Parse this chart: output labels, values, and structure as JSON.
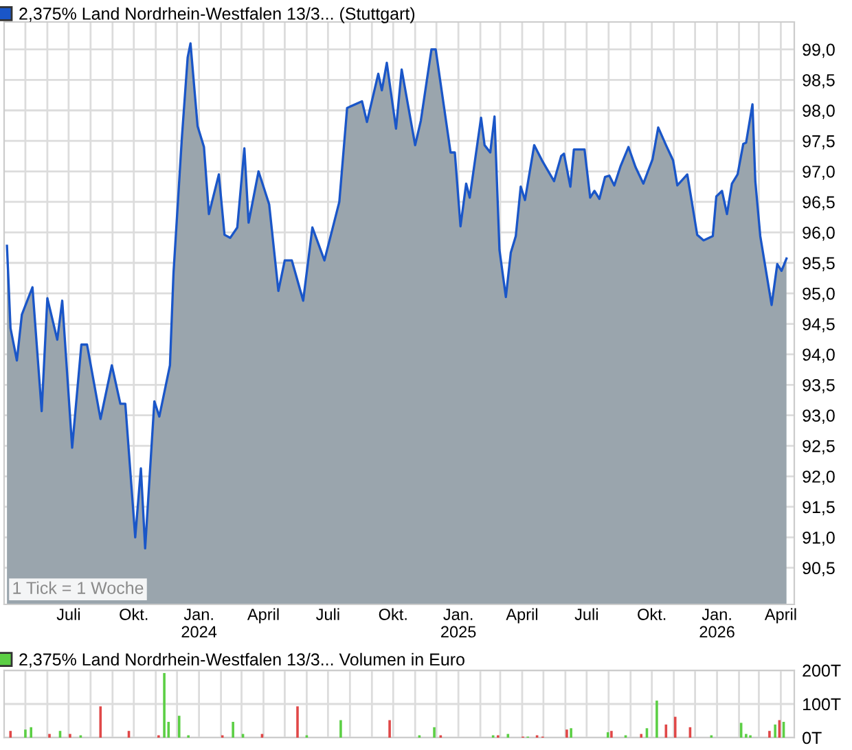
{
  "chart_data": [
    {
      "type": "area",
      "legend": "top left",
      "grid": true,
      "annotations": [
        "1 Tick = 1 Woche"
      ],
      "xlim": [
        "2023-04-01",
        "2026-04-20"
      ],
      "xticks": [
        {
          "value": "2023-05-01",
          "label": null
        },
        {
          "value": "2023-06-01",
          "label": null
        },
        {
          "value": "2023-07-01",
          "label": "Juli"
        },
        {
          "value": "2023-08-01",
          "label": null
        },
        {
          "value": "2023-09-01",
          "label": null
        },
        {
          "value": "2023-10-01",
          "label": "Okt."
        },
        {
          "value": "2023-11-01",
          "label": null
        },
        {
          "value": "2023-12-01",
          "label": null
        },
        {
          "value": "2024-01-01",
          "label": "Jan.\n2024"
        },
        {
          "value": "2024-02-01",
          "label": null
        },
        {
          "value": "2024-03-01",
          "label": null
        },
        {
          "value": "2024-04-01",
          "label": "April"
        },
        {
          "value": "2024-05-01",
          "label": null
        },
        {
          "value": "2024-06-01",
          "label": null
        },
        {
          "value": "2024-07-01",
          "label": "Juli"
        },
        {
          "value": "2024-08-01",
          "label": null
        },
        {
          "value": "2024-09-01",
          "label": null
        },
        {
          "value": "2024-10-01",
          "label": "Okt."
        },
        {
          "value": "2024-11-01",
          "label": null
        },
        {
          "value": "2024-12-01",
          "label": null
        },
        {
          "value": "2025-01-01",
          "label": "Jan.\n2025"
        },
        {
          "value": "2025-02-01",
          "label": null
        },
        {
          "value": "2025-03-01",
          "label": null
        },
        {
          "value": "2025-04-01",
          "label": "April"
        },
        {
          "value": "2025-05-01",
          "label": null
        },
        {
          "value": "2025-06-01",
          "label": null
        },
        {
          "value": "2025-07-01",
          "label": "Juli"
        },
        {
          "value": "2025-08-01",
          "label": null
        },
        {
          "value": "2025-09-01",
          "label": null
        },
        {
          "value": "2025-10-01",
          "label": "Okt."
        },
        {
          "value": "2025-11-01",
          "label": null
        },
        {
          "value": "2025-12-01",
          "label": null
        },
        {
          "value": "2026-01-01",
          "label": "Jan.\n2026"
        },
        {
          "value": "2026-02-01",
          "label": null
        },
        {
          "value": "2026-03-01",
          "label": null
        },
        {
          "value": "2026-04-01",
          "label": "April"
        }
      ],
      "ylim": [
        89.9,
        99.45
      ],
      "yticks": [
        {
          "value": 90.5,
          "label": "90,5"
        },
        {
          "value": 91.0,
          "label": "91,0"
        },
        {
          "value": 91.5,
          "label": "91,5"
        },
        {
          "value": 92.0,
          "label": "92,0"
        },
        {
          "value": 92.5,
          "label": "92,5"
        },
        {
          "value": 93.0,
          "label": "93,0"
        },
        {
          "value": 93.5,
          "label": "93,5"
        },
        {
          "value": 94.0,
          "label": "94,0"
        },
        {
          "value": 94.5,
          "label": "94,5"
        },
        {
          "value": 95.0,
          "label": "95,0"
        },
        {
          "value": 95.5,
          "label": "95,5"
        },
        {
          "value": 96.0,
          "label": "96,0"
        },
        {
          "value": 96.5,
          "label": "96,5"
        },
        {
          "value": 97.0,
          "label": "97,0"
        },
        {
          "value": 97.5,
          "label": "97,5"
        },
        {
          "value": 98.0,
          "label": "98,0"
        },
        {
          "value": 98.5,
          "label": "98,5"
        },
        {
          "value": 99.0,
          "label": "99,0"
        }
      ],
      "series": [
        {
          "name": "2,375% Land Nordrhein-Westfalen 13/3... (Stuttgart)",
          "color": "#1a56c8",
          "x": [
            "2023-04-05",
            "2023-04-10",
            "2023-04-19",
            "2023-04-26",
            "2023-05-11",
            "2023-05-24",
            "2023-06-01",
            "2023-06-15",
            "2023-06-22",
            "2023-07-06",
            "2023-07-19",
            "2023-07-27",
            "2023-08-15",
            "2023-08-31",
            "2023-09-12",
            "2023-09-19",
            "2023-10-03",
            "2023-10-11",
            "2023-10-17",
            "2023-10-30",
            "2023-11-06",
            "2023-11-21",
            "2023-11-26",
            "2023-12-08",
            "2023-12-16",
            "2023-12-20",
            "2023-12-30",
            "2024-01-08",
            "2024-01-15",
            "2024-01-29",
            "2024-02-06",
            "2024-02-14",
            "2024-02-24",
            "2024-03-05",
            "2024-03-11",
            "2024-03-25",
            "2024-04-09",
            "2024-04-22",
            "2024-05-01",
            "2024-05-11",
            "2024-05-27",
            "2024-06-09",
            "2024-06-26",
            "2024-07-17",
            "2024-07-28",
            "2024-08-18",
            "2024-08-25",
            "2024-09-10",
            "2024-09-15",
            "2024-09-22",
            "2024-10-05",
            "2024-10-13",
            "2024-11-01",
            "2024-11-09",
            "2024-11-24",
            "2024-11-30",
            "2024-12-21",
            "2024-12-27",
            "2025-01-04",
            "2025-01-12",
            "2025-01-17",
            "2025-02-02",
            "2025-02-07",
            "2025-02-15",
            "2025-02-21",
            "2025-02-28",
            "2025-03-09",
            "2025-03-16",
            "2025-03-23",
            "2025-03-30",
            "2025-04-05",
            "2025-04-18",
            "2025-04-29",
            "2025-05-16",
            "2025-05-26",
            "2025-05-30",
            "2025-06-08",
            "2025-06-13",
            "2025-06-28",
            "2025-07-06",
            "2025-07-12",
            "2025-07-19",
            "2025-07-27",
            "2025-08-02",
            "2025-08-09",
            "2025-08-18",
            "2025-08-29",
            "2025-09-08",
            "2025-09-19",
            "2025-10-02",
            "2025-10-10",
            "2025-10-21",
            "2025-10-31",
            "2025-11-06",
            "2025-11-20",
            "2025-11-26",
            "2025-12-04",
            "2025-12-13",
            "2025-12-26",
            "2025-12-31",
            "2026-01-08",
            "2026-01-15",
            "2026-01-22",
            "2026-01-30",
            "2026-02-07",
            "2026-02-11",
            "2026-02-20",
            "2026-02-24",
            "2026-03-03",
            "2026-03-19",
            "2026-03-27",
            "2026-04-02",
            "2026-04-09"
          ],
          "values": [
            95.78,
            94.43,
            93.9,
            94.65,
            95.1,
            93.07,
            94.92,
            94.24,
            94.88,
            92.47,
            94.16,
            94.16,
            92.94,
            93.82,
            93.19,
            93.19,
            91.0,
            92.13,
            90.82,
            93.23,
            92.98,
            93.82,
            95.33,
            97.58,
            98.87,
            99.1,
            97.74,
            97.4,
            96.3,
            96.95,
            95.96,
            95.91,
            96.08,
            97.38,
            96.16,
            97.0,
            96.46,
            95.04,
            95.54,
            95.54,
            94.88,
            96.08,
            95.54,
            96.5,
            98.04,
            98.15,
            97.81,
            98.6,
            98.33,
            98.78,
            97.7,
            98.67,
            97.43,
            97.83,
            99.0,
            99.0,
            97.31,
            97.31,
            96.1,
            96.8,
            96.57,
            97.88,
            97.43,
            97.31,
            97.9,
            95.71,
            94.94,
            95.67,
            95.94,
            96.75,
            96.53,
            97.43,
            97.18,
            96.84,
            97.25,
            97.29,
            96.75,
            97.36,
            97.36,
            96.57,
            96.68,
            96.55,
            96.91,
            96.93,
            96.77,
            97.09,
            97.4,
            97.07,
            96.8,
            97.2,
            97.72,
            97.43,
            97.18,
            96.77,
            96.95,
            96.53,
            95.96,
            95.87,
            95.94,
            96.59,
            96.68,
            96.3,
            96.8,
            96.95,
            97.45,
            97.47,
            98.1,
            96.84,
            95.94,
            94.81,
            95.48,
            95.37,
            95.57
          ]
        }
      ]
    },
    {
      "type": "bar",
      "legend": "top left",
      "grid": true,
      "tick_labels": "y",
      "xlim": [
        "2023-04-01",
        "2026-04-20"
      ],
      "xticks": [
        {
          "value": "2023-05-01",
          "label": null
        },
        {
          "value": "2023-06-01",
          "label": null
        },
        {
          "value": "2023-07-01",
          "label": null
        },
        {
          "value": "2023-08-01",
          "label": null
        },
        {
          "value": "2023-09-01",
          "label": null
        },
        {
          "value": "2023-10-01",
          "label": null
        },
        {
          "value": "2023-11-01",
          "label": null
        },
        {
          "value": "2023-12-01",
          "label": null
        },
        {
          "value": "2024-01-01",
          "label": null
        },
        {
          "value": "2024-02-01",
          "label": null
        },
        {
          "value": "2024-03-01",
          "label": null
        },
        {
          "value": "2024-04-01",
          "label": null
        },
        {
          "value": "2024-05-01",
          "label": null
        },
        {
          "value": "2024-06-01",
          "label": null
        },
        {
          "value": "2024-07-01",
          "label": null
        },
        {
          "value": "2024-08-01",
          "label": null
        },
        {
          "value": "2024-09-01",
          "label": null
        },
        {
          "value": "2024-10-01",
          "label": null
        },
        {
          "value": "2024-11-01",
          "label": null
        },
        {
          "value": "2024-12-01",
          "label": null
        },
        {
          "value": "2025-01-01",
          "label": null
        },
        {
          "value": "2025-02-01",
          "label": null
        },
        {
          "value": "2025-03-01",
          "label": null
        },
        {
          "value": "2025-04-01",
          "label": null
        },
        {
          "value": "2025-05-01",
          "label": null
        },
        {
          "value": "2025-06-01",
          "label": null
        },
        {
          "value": "2025-07-01",
          "label": null
        },
        {
          "value": "2025-08-01",
          "label": null
        },
        {
          "value": "2025-09-01",
          "label": null
        },
        {
          "value": "2025-10-01",
          "label": null
        },
        {
          "value": "2025-11-01",
          "label": null
        },
        {
          "value": "2025-12-01",
          "label": null
        },
        {
          "value": "2026-01-01",
          "label": null
        },
        {
          "value": "2026-02-01",
          "label": null
        },
        {
          "value": "2026-03-01",
          "label": null
        },
        {
          "value": "2026-04-01",
          "label": null
        }
      ],
      "ylim": [
        0,
        200
      ],
      "yticks": [
        {
          "value": 0,
          "label": "0T"
        },
        {
          "value": 100,
          "label": "100T"
        },
        {
          "value": 200,
          "label": "200T"
        }
      ],
      "series": [
        {
          "name": "2,375% Land Nordrhein-Westfalen 13/3... Volumen in Euro",
          "color": "#5ccf45",
          "x": [
            "2023-04-10",
            "2023-05-01",
            "2023-05-09",
            "2023-06-04",
            "2023-06-19",
            "2023-07-03",
            "2023-07-18",
            "2023-08-15",
            "2023-09-24",
            "2023-11-05",
            "2023-11-13",
            "2023-11-19",
            "2023-12-04",
            "2023-12-17",
            "2024-02-03",
            "2024-02-18",
            "2024-03-03",
            "2024-03-30",
            "2024-05-19",
            "2024-06-01",
            "2024-07-19",
            "2024-09-26",
            "2024-11-07",
            "2024-11-28",
            "2024-12-07",
            "2025-02-19",
            "2025-02-26",
            "2025-03-12",
            "2025-04-02",
            "2025-04-09",
            "2025-04-22",
            "2025-04-30",
            "2025-06-03",
            "2025-06-09",
            "2025-07-31",
            "2025-08-05",
            "2025-08-25",
            "2025-09-16",
            "2025-09-24",
            "2025-10-08",
            "2025-10-21",
            "2025-11-03",
            "2025-11-24",
            "2025-12-24",
            "2026-02-04",
            "2026-02-11",
            "2026-02-17",
            "2026-03-16",
            "2026-03-24",
            "2026-03-30",
            "2026-04-05"
          ],
          "values": [
            20,
            24,
            31,
            11,
            20,
            11,
            7,
            93,
            20,
            7,
            192,
            47,
            65,
            7,
            7,
            47,
            11,
            11,
            93,
            7,
            52,
            52,
            7,
            31,
            7,
            7,
            7,
            11,
            3,
            3,
            7,
            3,
            24,
            28,
            16,
            20,
            7,
            11,
            28,
            110,
            39,
            62,
            31,
            7,
            44,
            11,
            7,
            20,
            39,
            52,
            47
          ],
          "colors": [
            "#e04848",
            "#5ccf45",
            "#5ccf45",
            "#e04848",
            "#5ccf45",
            "#e04848",
            "#5ccf45",
            "#e04848",
            "#e04848",
            "#e04848",
            "#5ccf45",
            "#5ccf45",
            "#5ccf45",
            "#5ccf45",
            "#e04848",
            "#5ccf45",
            "#5ccf45",
            "#e04848",
            "#e04848",
            "#5ccf45",
            "#5ccf45",
            "#e04848",
            "#5ccf45",
            "#5ccf45",
            "#e04848",
            "#5ccf45",
            "#e04848",
            "#5ccf45",
            "#e04848",
            "#5ccf45",
            "#e04848",
            "#e04848",
            "#e04848",
            "#5ccf45",
            "#5ccf45",
            "#e04848",
            "#5ccf45",
            "#e04848",
            "#5ccf45",
            "#5ccf45",
            "#e04848",
            "#e04848",
            "#e04848",
            "#5ccf45",
            "#5ccf45",
            "#5ccf45",
            "#5ccf45",
            "#e04848",
            "#5ccf45",
            "#e04848",
            "#5ccf45"
          ]
        }
      ]
    }
  ]
}
